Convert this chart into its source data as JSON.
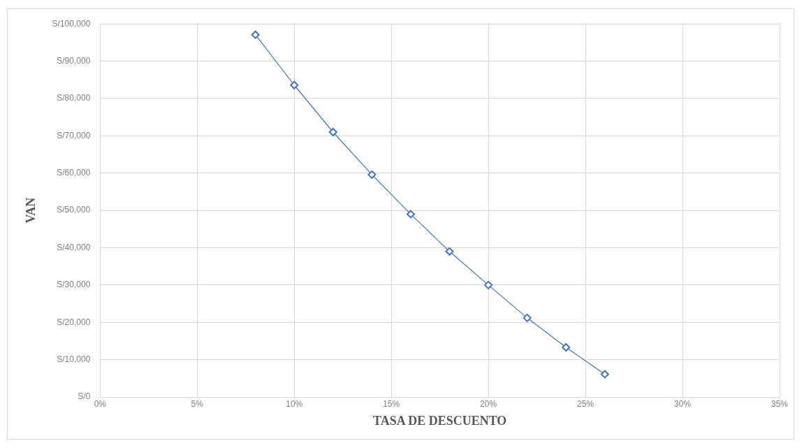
{
  "chart_data": {
    "type": "line",
    "xlabel": "TASA DE DESCUENTO",
    "ylabel": "VAN",
    "x": [
      8,
      10,
      12,
      14,
      16,
      18,
      20,
      22,
      24,
      26
    ],
    "series": [
      {
        "color": "#4472c4",
        "values": [
          97100,
          83600,
          71000,
          59600,
          49000,
          39000,
          30000,
          21200,
          13300,
          6100
        ]
      }
    ],
    "xlim": [
      0,
      35
    ],
    "xticks": [
      {
        "value": 0,
        "label": "0%"
      },
      {
        "value": 5,
        "label": "5%"
      },
      {
        "value": 10,
        "label": "10%"
      },
      {
        "value": 15,
        "label": "15%"
      },
      {
        "value": 20,
        "label": "20%"
      },
      {
        "value": 25,
        "label": "25%"
      },
      {
        "value": 30,
        "label": "30%"
      },
      {
        "value": 35,
        "label": "35%"
      }
    ],
    "ylim": [
      0,
      100000
    ],
    "yticks": [
      {
        "value": 0,
        "label": "S/0"
      },
      {
        "value": 10000,
        "label": "S/10,000"
      },
      {
        "value": 20000,
        "label": "S/20,000"
      },
      {
        "value": 30000,
        "label": "S/30,000"
      },
      {
        "value": 40000,
        "label": "S/40,000"
      },
      {
        "value": 50000,
        "label": "S/50,000"
      },
      {
        "value": 60000,
        "label": "S/60,000"
      },
      {
        "value": 70000,
        "label": "S/70,000"
      },
      {
        "value": 80000,
        "label": "S/80,000"
      },
      {
        "value": 90000,
        "label": "S/90,000"
      },
      {
        "value": 100000,
        "label": "S/100,000"
      }
    ],
    "grid": true,
    "marker": "diamond",
    "line_style": "solid",
    "legend": false
  }
}
